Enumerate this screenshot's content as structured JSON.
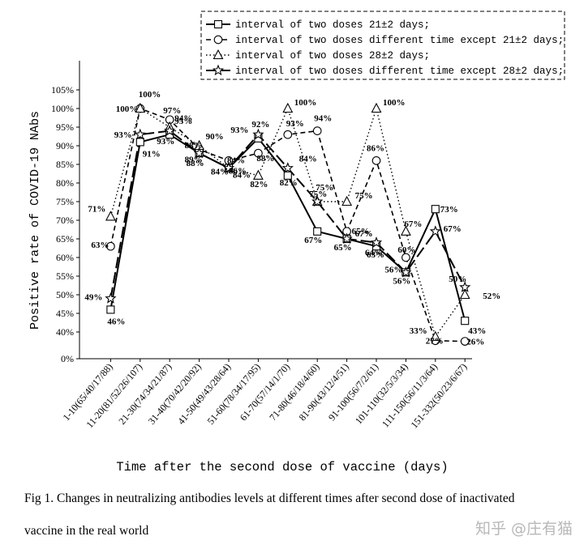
{
  "chart_data": {
    "type": "line",
    "xlabel": "Time after the second dose of vaccine (days)",
    "ylabel": "Positive rate of  COVID-19 NAbs",
    "y_ticks": [
      "0%",
      "40%",
      "45%",
      "50%",
      "55%",
      "60%",
      "65%",
      "70%",
      "75%",
      "80%",
      "85%",
      "90%",
      "95%",
      "100%",
      "105%"
    ],
    "y_scale": "broken axis: 0% at bottom, then 40%–105% linear",
    "categories": [
      "1-10(65/40/17/88)",
      "11-20(81/52/26/107)",
      "21-30(74/34/21/87)",
      "31-40(70/42/20/92)",
      "41-50(49/43/28/64)",
      "51-60(78/34/17/95)",
      "61-70(57/14/1/70)",
      "71-80(46/18/4/60)",
      "81-90(43/12/4/51)",
      "91-100(56/7/2/61)",
      "101-110(32/5/3/34)",
      "111-150(56/11/3/64)",
      "151-332(50/23/6/67)"
    ],
    "series": [
      {
        "name": "interval of two doses 21±2 days;",
        "marker": "square",
        "line": "solid",
        "values": [
          46,
          91,
          93,
          88,
          84,
          92,
          82,
          67,
          65,
          63,
          56,
          73,
          43
        ],
        "labels": [
          "46%",
          "91%",
          "93%",
          "88%",
          "84%",
          "92%",
          "82%",
          "67%",
          "65%",
          "63%",
          "56%",
          "73%",
          "43%"
        ]
      },
      {
        "name": "interval of two doses different time except 21±2 days;",
        "marker": "circle",
        "line": "dashed",
        "values": [
          63,
          100,
          97,
          89,
          86,
          88,
          93,
          94,
          67,
          86,
          60,
          27,
          26
        ],
        "labels": [
          "63%",
          "100%",
          "97%",
          "89%",
          "86%",
          "88%",
          "93%",
          "94%",
          "67%",
          "86%",
          "60%",
          "27%",
          "26%"
        ]
      },
      {
        "name": "interval of two doses 28±2 days;",
        "marker": "triangle",
        "line": "dotted",
        "values": [
          71,
          100,
          95,
          90,
          84,
          82,
          100,
          75,
          75,
          100,
          67,
          33,
          50
        ],
        "labels": [
          "71%",
          "100%",
          "95%",
          "90%",
          "84%",
          "82%",
          "100%",
          "75%",
          "75%",
          "100%",
          "67%",
          "33%",
          "50%"
        ]
      },
      {
        "name": "interval of two doses different time except 28±2 days;",
        "marker": "star",
        "line": "longdash",
        "values": [
          49,
          93,
          94,
          88,
          84,
          93,
          84,
          75,
          65,
          64,
          56,
          67,
          52
        ],
        "labels": [
          "49%",
          "93%",
          "94%",
          "88%",
          "84%",
          "93%",
          "84%",
          "75%",
          "65%",
          "64%",
          "56%",
          "67%",
          "52%"
        ]
      }
    ]
  },
  "caption_line1": "Fig 1. Changes in neutralizing antibodies levels at different times after second dose of inactivated",
  "caption_line2": "vaccine in the real world",
  "watermark": "知乎 @庄有猫"
}
